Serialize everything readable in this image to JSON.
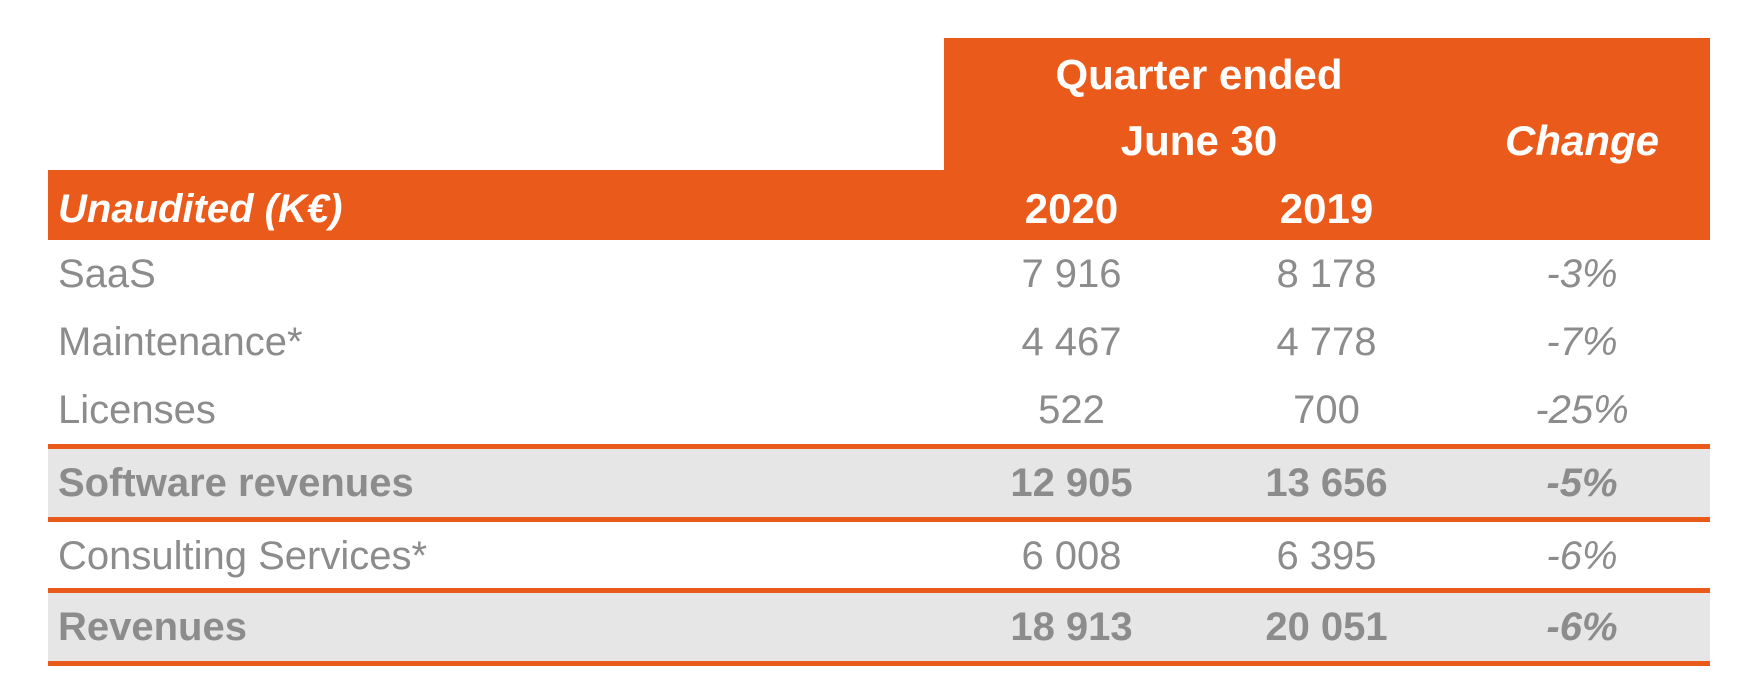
{
  "header": {
    "quarter_line1": "Quarter ended",
    "quarter_line2": "June 30",
    "change": "Change",
    "row_label": "Unaudited (K€)",
    "year_current": "2020",
    "year_prior": "2019"
  },
  "rows": [
    {
      "label": "SaaS",
      "y2020": "7 916",
      "y2019": "8 178",
      "change": "-3%"
    },
    {
      "label": "Maintenance*",
      "y2020": "4 467",
      "y2019": "4 778",
      "change": "-7%"
    },
    {
      "label": "Licenses",
      "y2020": "522",
      "y2019": "700",
      "change": "-25%"
    },
    {
      "label": "Software revenues",
      "y2020": "12 905",
      "y2019": "13 656",
      "change": "-5%"
    },
    {
      "label": "Consulting Services*",
      "y2020": "6 008",
      "y2019": "6 395",
      "change": "-6%"
    },
    {
      "label": "Revenues",
      "y2020": "18 913",
      "y2019": "20 051",
      "change": "-6%"
    }
  ],
  "colors": {
    "accent": "#EA5B1B",
    "text": "#8C8C8C",
    "total_background": "#E6E6E6"
  }
}
